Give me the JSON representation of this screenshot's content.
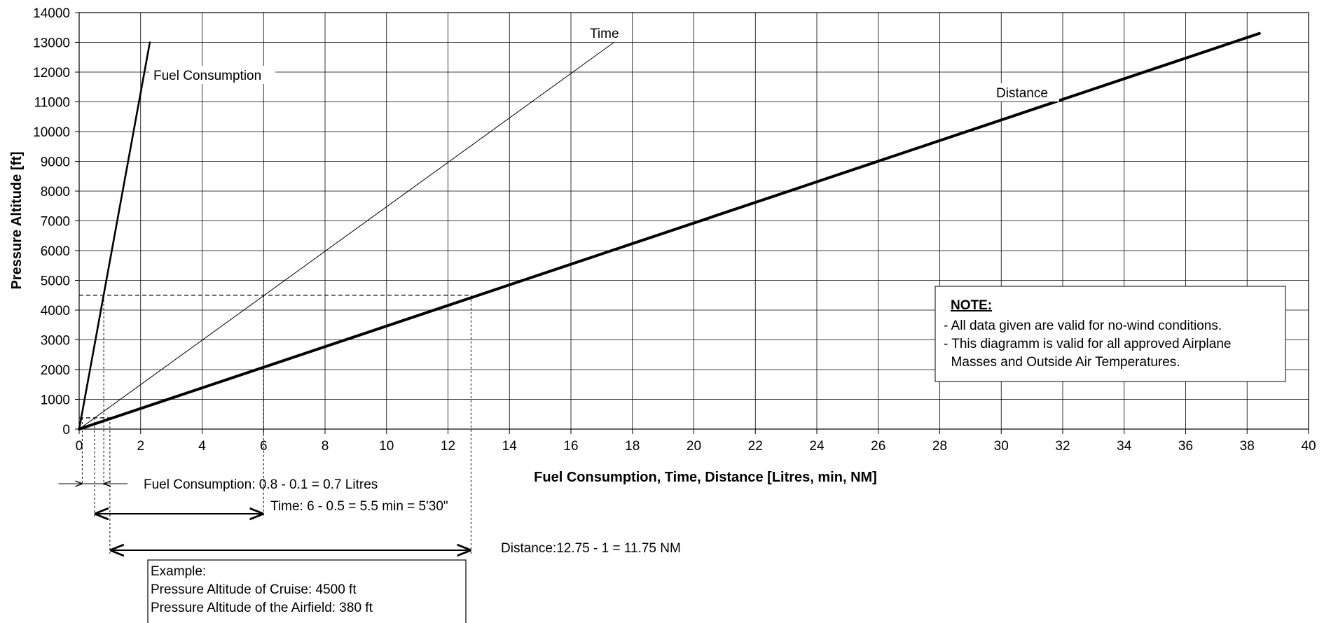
{
  "chart_data": {
    "type": "line",
    "xlabel": "Fuel Consumption, Time, Distance [Litres, min, NM]",
    "ylabel": "Pressure Altitude [ft]",
    "xlim": [
      0,
      40
    ],
    "ylim": [
      0,
      14000
    ],
    "x_ticks": [
      "0",
      "2",
      "4",
      "6",
      "8",
      "10",
      "12",
      "14",
      "16",
      "18",
      "20",
      "22",
      "24",
      "26",
      "28",
      "30",
      "32",
      "34",
      "36",
      "38",
      "40"
    ],
    "y_ticks": [
      "0",
      "1000",
      "2000",
      "3000",
      "4000",
      "5000",
      "6000",
      "7000",
      "8000",
      "9000",
      "10000",
      "11000",
      "12000",
      "13000",
      "14000"
    ],
    "grid": true,
    "series": [
      {
        "name": "Fuel Consumption",
        "x": [
          0,
          2.3
        ],
        "y": [
          0,
          13000
        ]
      },
      {
        "name": "Time",
        "x": [
          0,
          17.4
        ],
        "y": [
          0,
          13000
        ]
      },
      {
        "name": "Distance",
        "x": [
          0,
          38.4
        ],
        "y": [
          0,
          13300
        ]
      }
    ],
    "annotations": {
      "fuel": "Fuel Consumption: 0.8 - 0.1 = 0.7 Litres",
      "time": "Time: 6 - 0.5 = 5.5 min = 5'30\"",
      "distance": "Distance:12.75 - 1 = 11.75 NM"
    },
    "reference_lines": {
      "cruise_altitude": 4500,
      "airfield_altitude": 380,
      "fuel_x": [
        0.1,
        0.8
      ],
      "time_x": [
        0.5,
        6
      ],
      "distance_x": [
        1,
        12.75
      ]
    },
    "note": {
      "title": "NOTE:",
      "lines": [
        "- All data given are valid for no-wind conditions.",
        "- This diagramm is valid for all approved Airplane",
        "  Masses and Outside Air Temperatures."
      ]
    },
    "example": {
      "title": "Example:",
      "lines": [
        "Pressure Altitude of Cruise: 4500 ft",
        "Pressure Altitude of the Airfield: 380 ft"
      ]
    }
  }
}
